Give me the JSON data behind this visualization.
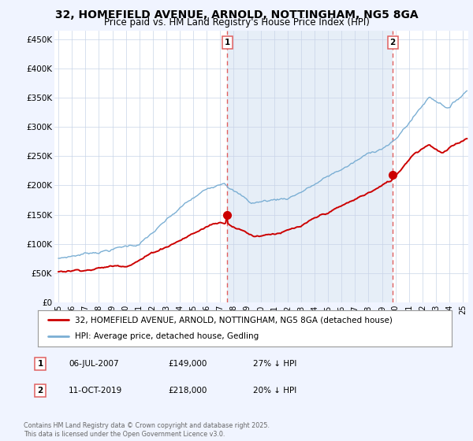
{
  "title": "32, HOMEFIELD AVENUE, ARNOLD, NOTTINGHAM, NG5 8GA",
  "subtitle": "Price paid vs. HM Land Registry's House Price Index (HPI)",
  "title_fontsize": 10,
  "subtitle_fontsize": 8.5,
  "ylabel_ticks": [
    "£0",
    "£50K",
    "£100K",
    "£150K",
    "£200K",
    "£250K",
    "£300K",
    "£350K",
    "£400K",
    "£450K"
  ],
  "ytick_values": [
    0,
    50000,
    100000,
    150000,
    200000,
    250000,
    300000,
    350000,
    400000,
    450000
  ],
  "ylim": [
    0,
    465000
  ],
  "xlim_start": 1994.7,
  "xlim_end": 2025.4,
  "xticks": [
    1995,
    1996,
    1997,
    1998,
    1999,
    2000,
    2001,
    2002,
    2003,
    2004,
    2005,
    2006,
    2007,
    2008,
    2009,
    2010,
    2011,
    2012,
    2013,
    2014,
    2015,
    2016,
    2017,
    2018,
    2019,
    2020,
    2021,
    2022,
    2023,
    2024,
    2025
  ],
  "red_line_color": "#cc0000",
  "blue_line_color": "#7bafd4",
  "blue_fill_color": "#dce8f5",
  "vline_color": "#e06060",
  "vline1_x": 2007.52,
  "vline2_x": 2019.79,
  "marker1_x": 2007.52,
  "marker1_y": 149000,
  "marker2_x": 2019.79,
  "marker2_y": 218000,
  "legend_red": "32, HOMEFIELD AVENUE, ARNOLD, NOTTINGHAM, NG5 8GA (detached house)",
  "legend_blue": "HPI: Average price, detached house, Gedling",
  "annotation1_label": "1",
  "annotation1_date": "06-JUL-2007",
  "annotation1_price": "£149,000",
  "annotation1_hpi": "27% ↓ HPI",
  "annotation2_label": "2",
  "annotation2_date": "11-OCT-2019",
  "annotation2_price": "£218,000",
  "annotation2_hpi": "20% ↓ HPI",
  "footer": "Contains HM Land Registry data © Crown copyright and database right 2025.\nThis data is licensed under the Open Government Licence v3.0.",
  "background_color": "#f0f4ff",
  "plot_bg_color": "#ffffff"
}
